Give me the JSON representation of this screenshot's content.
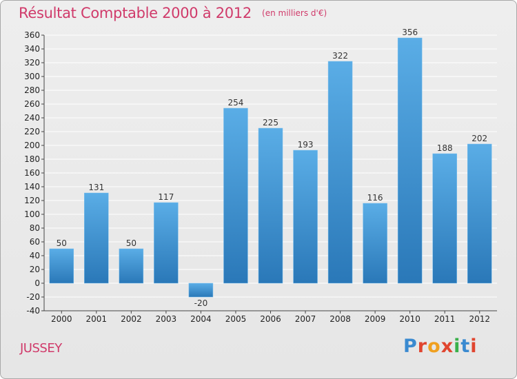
{
  "header": {
    "title": "Résultat Comptable 2000 à 2012",
    "subtitle": "(en milliers d'€)"
  },
  "place": "JUSSEY",
  "logo": {
    "text": "Proxiti",
    "colors": [
      "#3a8ad0",
      "#e0452f",
      "#f0a020",
      "#e0452f",
      "#3ab04a",
      "#3a8ad0",
      "#e0452f"
    ]
  },
  "colors": {
    "bar_light": "#5aade6",
    "bar_dark": "#2a78b8",
    "grid": "#ffffff",
    "axis": "#444444",
    "accent": "#d03a6a"
  },
  "chart_data": {
    "type": "bar",
    "title": "Résultat Comptable 2000 à 2012",
    "subtitle": "(en milliers d'€)",
    "xlabel": "",
    "ylabel": "",
    "categories": [
      "2000",
      "2001",
      "2002",
      "2003",
      "2004",
      "2005",
      "2006",
      "2007",
      "2008",
      "2009",
      "2010",
      "2011",
      "2012"
    ],
    "values": [
      50,
      131,
      50,
      117,
      -20,
      254,
      225,
      193,
      322,
      116,
      356,
      188,
      202
    ],
    "value_labels": [
      "50",
      "131",
      "50",
      "117",
      "-20",
      "254",
      "225",
      "193",
      "322",
      "116",
      "356",
      "188",
      "202"
    ],
    "ylim": [
      -40,
      360
    ],
    "ytick_step": 20,
    "yticks": [
      "-40",
      "-20",
      "0",
      "20",
      "40",
      "60",
      "80",
      "100",
      "120",
      "140",
      "160",
      "180",
      "200",
      "220",
      "240",
      "260",
      "280",
      "300",
      "320",
      "340",
      "360"
    ],
    "grid": true,
    "legend": "none"
  }
}
